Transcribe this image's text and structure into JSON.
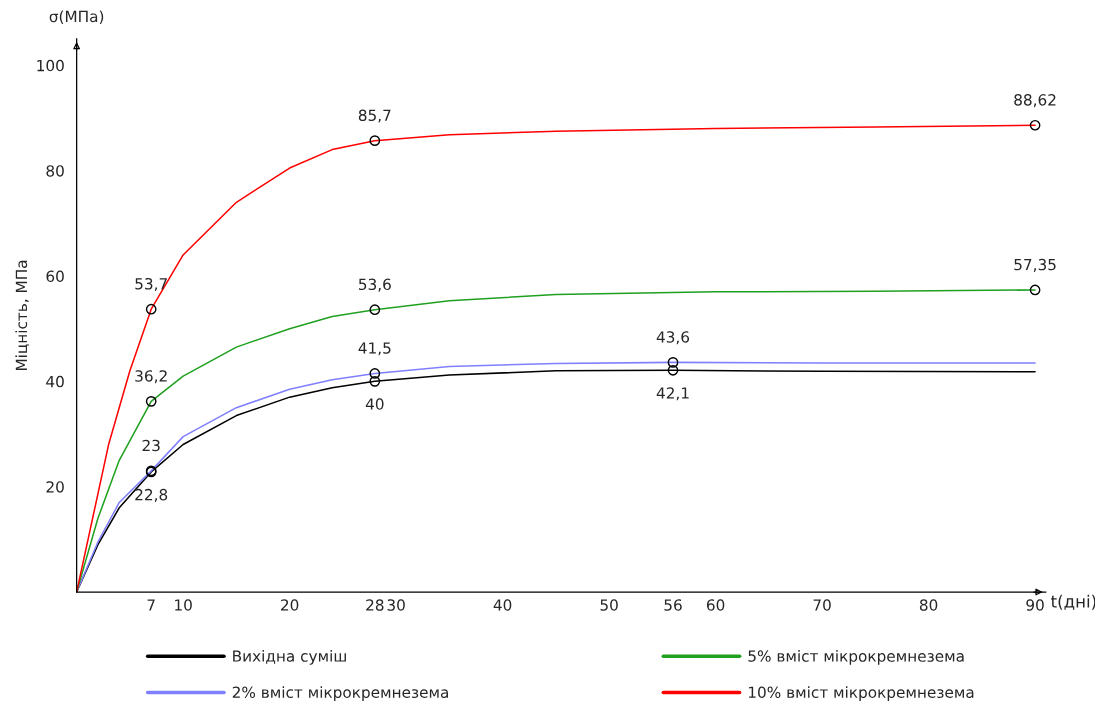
{
  "chart_data": {
    "type": "line",
    "xlabel": "t(дні)",
    "ylabel": "Міцність, МПа",
    "annotations": [
      "σ(МПа)"
    ],
    "xlim": [
      0,
      91
    ],
    "xticks": [
      7,
      10,
      20,
      28,
      30,
      40,
      50,
      56,
      60,
      70,
      80,
      90
    ],
    "ylim": [
      0,
      105
    ],
    "yticks": [
      20,
      40,
      60,
      80,
      100
    ],
    "grid": false,
    "legend": "bottom",
    "line_style": "solid",
    "series": [
      {
        "name": "Вихідна суміш",
        "color": "#000000",
        "x": [
          0,
          2,
          4,
          7,
          10,
          15,
          20,
          24,
          28,
          35,
          45,
          56,
          70,
          90
        ],
        "values": [
          0,
          9,
          16,
          22.8,
          28,
          33.5,
          37,
          38.8,
          40,
          41.2,
          42,
          42.1,
          41.9,
          41.8
        ]
      },
      {
        "name": "2% вміст мікрокремнезема",
        "color": "#7f7fff",
        "x": [
          0,
          2,
          4,
          7,
          10,
          15,
          20,
          24,
          28,
          35,
          45,
          56,
          70,
          90
        ],
        "values": [
          0,
          9.5,
          17,
          23,
          29.5,
          35,
          38.5,
          40.3,
          41.5,
          42.8,
          43.4,
          43.6,
          43.5,
          43.5
        ]
      },
      {
        "name": "5% вміст мікрокремнезема",
        "color": "#1fa01f",
        "x": [
          0,
          2,
          4,
          7,
          10,
          15,
          20,
          24,
          28,
          35,
          45,
          60,
          75,
          90
        ],
        "values": [
          0,
          14,
          25,
          36.2,
          41,
          46.5,
          50,
          52.3,
          53.6,
          55.3,
          56.5,
          57,
          57.1,
          57.35
        ]
      },
      {
        "name": "10% вміст мікрокремнезема",
        "color": "#ff0000",
        "x": [
          0,
          3,
          5,
          7,
          10,
          15,
          20,
          24,
          28,
          35,
          45,
          60,
          75,
          90
        ],
        "values": [
          0,
          28,
          42,
          53.7,
          64,
          74,
          80.5,
          84,
          85.7,
          86.8,
          87.5,
          88,
          88.3,
          88.62
        ]
      },
      {
        "type": "scatter",
        "marker": "circle",
        "color": "#000000",
        "x": [
          7,
          28,
          56
        ],
        "values": [
          22.8,
          40,
          42.1
        ],
        "value_labels": [
          "22,8",
          "40",
          "42,1"
        ]
      },
      {
        "type": "scatter",
        "marker": "circle",
        "color": "#000000",
        "x": [
          7,
          28,
          56
        ],
        "values": [
          23,
          41.5,
          43.6
        ],
        "value_labels": [
          "23",
          "41,5",
          "43,6"
        ]
      },
      {
        "type": "scatter",
        "marker": "circle",
        "color": "#000000",
        "x": [
          7,
          28,
          90
        ],
        "values": [
          36.2,
          53.6,
          57.35
        ],
        "value_labels": [
          "36,2",
          "53,6",
          "57,35"
        ]
      },
      {
        "type": "scatter",
        "marker": "circle",
        "color": "#000000",
        "x": [
          7,
          28,
          90
        ],
        "values": [
          53.7,
          85.7,
          88.62
        ],
        "value_labels": [
          "53,7",
          "85,7",
          "88,62"
        ]
      }
    ]
  }
}
